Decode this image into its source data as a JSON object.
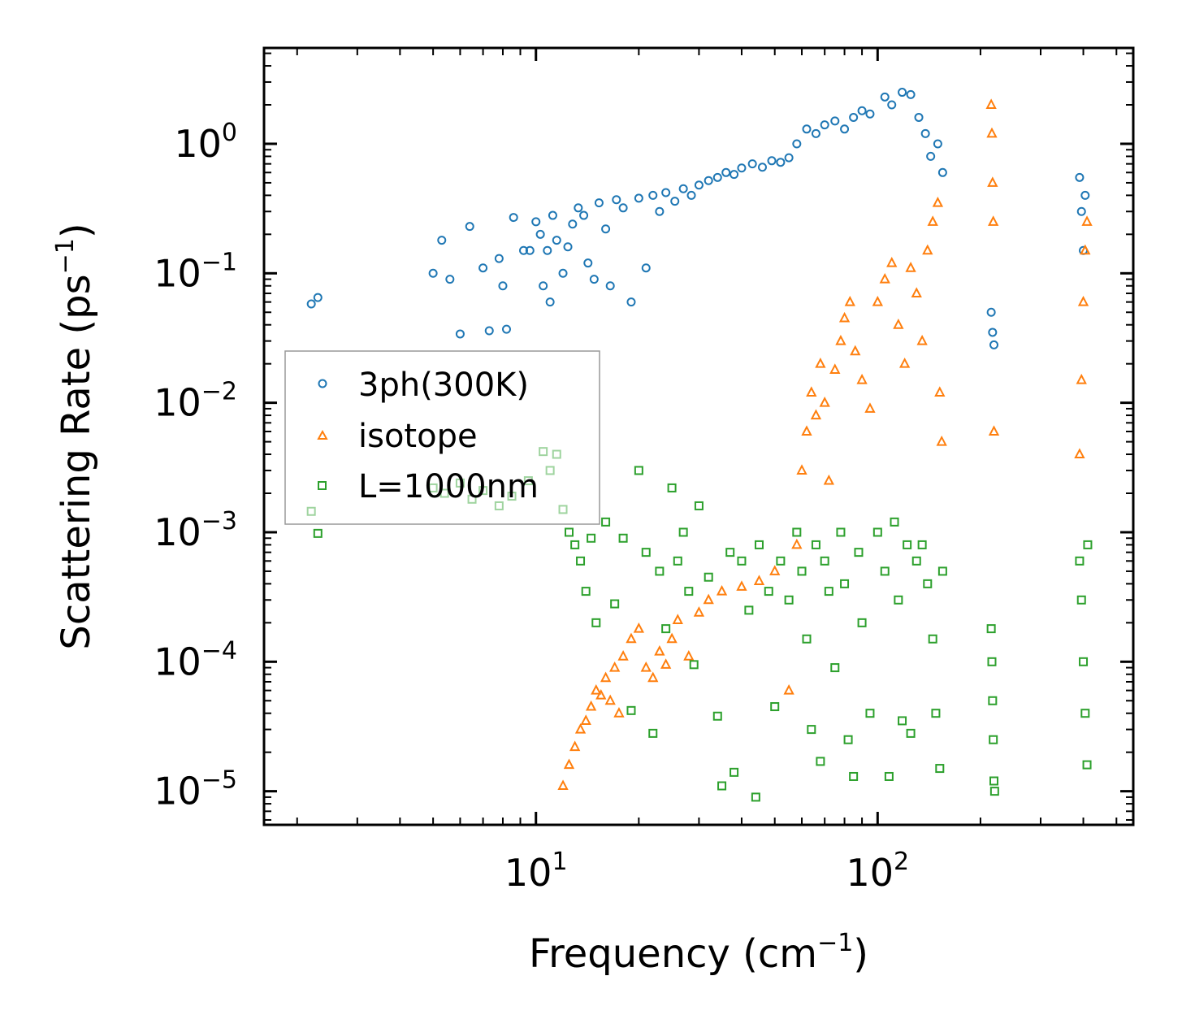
{
  "chart_data": {
    "type": "scatter",
    "xscale": "log",
    "yscale": "log",
    "xlabel": "Frequency (cm",
    "xlabel_sup": "−1",
    "xlabel_close": ")",
    "ylabel": "Scattering Rate (ps",
    "ylabel_sup": "−1",
    "ylabel_close": ")",
    "xlim": [
      1.6,
      560
    ],
    "ylim": [
      5.5e-06,
      5.5
    ],
    "legend_position": "center-left",
    "x_ticks": [
      {
        "value": 10,
        "base": "10",
        "exp": "1"
      },
      {
        "value": 100,
        "base": "10",
        "exp": "2"
      }
    ],
    "y_ticks": [
      {
        "value": 1,
        "base": "10",
        "exp": "0"
      },
      {
        "value": 0.1,
        "base": "10",
        "exp": "−1"
      },
      {
        "value": 0.01,
        "base": "10",
        "exp": "−2"
      },
      {
        "value": 0.001,
        "base": "10",
        "exp": "−3"
      },
      {
        "value": 0.0001,
        "base": "10",
        "exp": "−4"
      },
      {
        "value": 1e-05,
        "base": "10",
        "exp": "−5"
      }
    ],
    "series": [
      {
        "name": "3ph(300K)",
        "marker": "circle",
        "color": "#1f77b4",
        "points": [
          [
            2.2,
            0.058
          ],
          [
            2.3,
            0.065
          ],
          [
            5.0,
            0.1
          ],
          [
            5.3,
            0.18
          ],
          [
            5.6,
            0.09
          ],
          [
            6.0,
            0.034
          ],
          [
            6.4,
            0.23
          ],
          [
            7.0,
            0.11
          ],
          [
            7.3,
            0.036
          ],
          [
            7.8,
            0.13
          ],
          [
            8.0,
            0.08
          ],
          [
            8.2,
            0.037
          ],
          [
            8.6,
            0.27
          ],
          [
            9.2,
            0.15
          ],
          [
            9.6,
            0.15
          ],
          [
            10.0,
            0.25
          ],
          [
            10.3,
            0.2
          ],
          [
            10.5,
            0.08
          ],
          [
            10.8,
            0.15
          ],
          [
            11.0,
            0.06
          ],
          [
            11.2,
            0.28
          ],
          [
            11.5,
            0.18
          ],
          [
            12.0,
            0.1
          ],
          [
            12.4,
            0.16
          ],
          [
            12.8,
            0.24
          ],
          [
            13.3,
            0.32
          ],
          [
            13.8,
            0.28
          ],
          [
            14.2,
            0.12
          ],
          [
            14.8,
            0.09
          ],
          [
            15.3,
            0.35
          ],
          [
            16.0,
            0.22
          ],
          [
            16.5,
            0.08
          ],
          [
            17.2,
            0.37
          ],
          [
            18.0,
            0.32
          ],
          [
            19.0,
            0.06
          ],
          [
            20.0,
            0.38
          ],
          [
            21.0,
            0.11
          ],
          [
            22.0,
            0.4
          ],
          [
            23.0,
            0.3
          ],
          [
            24.0,
            0.42
          ],
          [
            25.5,
            0.36
          ],
          [
            27.0,
            0.45
          ],
          [
            28.5,
            0.4
          ],
          [
            30.0,
            0.48
          ],
          [
            32.0,
            0.52
          ],
          [
            34.0,
            0.55
          ],
          [
            36.0,
            0.6
          ],
          [
            38.0,
            0.58
          ],
          [
            40.0,
            0.65
          ],
          [
            43.0,
            0.7
          ],
          [
            46.0,
            0.66
          ],
          [
            49.0,
            0.74
          ],
          [
            52.0,
            0.72
          ],
          [
            55.0,
            0.78
          ],
          [
            58.0,
            1.0
          ],
          [
            62.0,
            1.3
          ],
          [
            66.0,
            1.2
          ],
          [
            70.0,
            1.4
          ],
          [
            75.0,
            1.5
          ],
          [
            80.0,
            1.3
          ],
          [
            85.0,
            1.6
          ],
          [
            90.0,
            1.8
          ],
          [
            95.0,
            1.7
          ],
          [
            105.0,
            2.3
          ],
          [
            110.0,
            2.0
          ],
          [
            118.0,
            2.5
          ],
          [
            125.0,
            2.4
          ],
          [
            132.0,
            1.6
          ],
          [
            138.0,
            1.2
          ],
          [
            143.0,
            0.8
          ],
          [
            150.0,
            1.0
          ],
          [
            155.0,
            0.6
          ],
          [
            215.0,
            0.05
          ],
          [
            217.0,
            0.035
          ],
          [
            219.0,
            0.028
          ],
          [
            390.0,
            0.55
          ],
          [
            395.0,
            0.3
          ],
          [
            400.0,
            0.15
          ],
          [
            405.0,
            0.4
          ]
        ]
      },
      {
        "name": "isotope",
        "marker": "triangle",
        "color": "#ff7f0e",
        "points": [
          [
            12.0,
            1.1e-05
          ],
          [
            12.5,
            1.6e-05
          ],
          [
            13.0,
            2.2e-05
          ],
          [
            13.5,
            3e-05
          ],
          [
            14.0,
            3.5e-05
          ],
          [
            14.5,
            4.5e-05
          ],
          [
            15.0,
            6e-05
          ],
          [
            15.5,
            5.5e-05
          ],
          [
            16.0,
            7.5e-05
          ],
          [
            16.5,
            5e-05
          ],
          [
            17.0,
            9e-05
          ],
          [
            17.5,
            4e-05
          ],
          [
            18.0,
            0.00011
          ],
          [
            19.0,
            0.00015
          ],
          [
            20.0,
            0.00018
          ],
          [
            21.0,
            9e-05
          ],
          [
            22.0,
            7.5e-05
          ],
          [
            23.0,
            0.00012
          ],
          [
            24.0,
            9.5e-05
          ],
          [
            25.0,
            0.00015
          ],
          [
            26.0,
            0.00021
          ],
          [
            28.0,
            0.00011
          ],
          [
            30.0,
            0.00024
          ],
          [
            32.0,
            0.0003
          ],
          [
            35.0,
            0.00035
          ],
          [
            40.0,
            0.00038
          ],
          [
            45.0,
            0.00042
          ],
          [
            50.0,
            0.0005
          ],
          [
            55.0,
            6e-05
          ],
          [
            58.0,
            0.0008
          ],
          [
            60.0,
            0.003
          ],
          [
            62.0,
            0.006
          ],
          [
            64.0,
            0.012
          ],
          [
            66.0,
            0.008
          ],
          [
            68.0,
            0.02
          ],
          [
            70.0,
            0.01
          ],
          [
            72.0,
            0.0025
          ],
          [
            75.0,
            0.018
          ],
          [
            78.0,
            0.03
          ],
          [
            80.0,
            0.045
          ],
          [
            83.0,
            0.06
          ],
          [
            86.0,
            0.025
          ],
          [
            90.0,
            0.015
          ],
          [
            95.0,
            0.009
          ],
          [
            100.0,
            0.06
          ],
          [
            105.0,
            0.09
          ],
          [
            110.0,
            0.12
          ],
          [
            115.0,
            0.04
          ],
          [
            120.0,
            0.02
          ],
          [
            125.0,
            0.11
          ],
          [
            130.0,
            0.07
          ],
          [
            135.0,
            0.03
          ],
          [
            140.0,
            0.15
          ],
          [
            145.0,
            0.25
          ],
          [
            150.0,
            0.35
          ],
          [
            152.0,
            0.012
          ],
          [
            154.0,
            0.005
          ],
          [
            215.0,
            2.0
          ],
          [
            216.0,
            1.2
          ],
          [
            217.0,
            0.5
          ],
          [
            218.0,
            0.25
          ],
          [
            219.0,
            0.006
          ],
          [
            390.0,
            0.004
          ],
          [
            395.0,
            0.015
          ],
          [
            400.0,
            0.06
          ],
          [
            405.0,
            0.15
          ],
          [
            410.0,
            0.25
          ]
        ]
      },
      {
        "name": "L=1000nm",
        "marker": "square",
        "color": "#2ca02c",
        "points": [
          [
            2.2,
            0.00145
          ],
          [
            2.3,
            0.00098
          ],
          [
            5.0,
            0.0022
          ],
          [
            5.4,
            0.002
          ],
          [
            6.0,
            0.0024
          ],
          [
            6.5,
            0.0018
          ],
          [
            7.0,
            0.0021
          ],
          [
            7.8,
            0.0016
          ],
          [
            8.5,
            0.0019
          ],
          [
            9.5,
            0.0025
          ],
          [
            10.5,
            0.0042
          ],
          [
            11.0,
            0.003
          ],
          [
            11.5,
            0.004
          ],
          [
            12.0,
            0.0015
          ],
          [
            12.5,
            0.001
          ],
          [
            13.0,
            0.0008
          ],
          [
            13.5,
            0.0006
          ],
          [
            14.0,
            0.00035
          ],
          [
            14.5,
            0.0009
          ],
          [
            15.0,
            0.0002
          ],
          [
            16.0,
            0.0012
          ],
          [
            17.0,
            0.00028
          ],
          [
            18.0,
            0.0009
          ],
          [
            19.0,
            4.2e-05
          ],
          [
            20.0,
            0.003
          ],
          [
            21.0,
            0.0007
          ],
          [
            22.0,
            2.8e-05
          ],
          [
            23.0,
            0.0005
          ],
          [
            24.0,
            0.00018
          ],
          [
            25.0,
            0.0022
          ],
          [
            26.0,
            0.0006
          ],
          [
            27.0,
            0.001
          ],
          [
            28.0,
            0.00035
          ],
          [
            29.0,
            9.5e-05
          ],
          [
            30.0,
            0.0016
          ],
          [
            32.0,
            0.00045
          ],
          [
            34.0,
            3.8e-05
          ],
          [
            35.0,
            1.1e-05
          ],
          [
            37.0,
            0.0007
          ],
          [
            38.0,
            1.4e-05
          ],
          [
            40.0,
            0.0006
          ],
          [
            42.0,
            0.00025
          ],
          [
            44.0,
            9e-06
          ],
          [
            45.0,
            0.0008
          ],
          [
            48.0,
            0.00035
          ],
          [
            50.0,
            4.5e-05
          ],
          [
            52.0,
            0.0006
          ],
          [
            55.0,
            0.0003
          ],
          [
            58.0,
            0.001
          ],
          [
            60.0,
            0.0005
          ],
          [
            62.0,
            0.00015
          ],
          [
            64.0,
            3e-05
          ],
          [
            66.0,
            0.0008
          ],
          [
            68.0,
            1.7e-05
          ],
          [
            70.0,
            0.0006
          ],
          [
            72.0,
            0.00035
          ],
          [
            75.0,
            9e-05
          ],
          [
            78.0,
            0.001
          ],
          [
            80.0,
            0.0004
          ],
          [
            82.0,
            2.5e-05
          ],
          [
            85.0,
            1.3e-05
          ],
          [
            88.0,
            0.0007
          ],
          [
            90.0,
            0.0002
          ],
          [
            95.0,
            4e-05
          ],
          [
            100.0,
            0.001
          ],
          [
            105.0,
            0.0005
          ],
          [
            108.0,
            1.3e-05
          ],
          [
            112.0,
            0.0012
          ],
          [
            115.0,
            0.0003
          ],
          [
            118.0,
            3.5e-05
          ],
          [
            122.0,
            0.0008
          ],
          [
            125.0,
            2.8e-05
          ],
          [
            130.0,
            0.0006
          ],
          [
            135.0,
            0.0008
          ],
          [
            140.0,
            0.0004
          ],
          [
            145.0,
            0.00015
          ],
          [
            148.0,
            4e-05
          ],
          [
            152.0,
            1.5e-05
          ],
          [
            155.0,
            0.0005
          ],
          [
            215.0,
            0.00018
          ],
          [
            216.0,
            0.0001
          ],
          [
            217.0,
            5e-05
          ],
          [
            218.0,
            2.5e-05
          ],
          [
            219.0,
            1.2e-05
          ],
          [
            220.0,
            1e-05
          ],
          [
            390.0,
            0.0006
          ],
          [
            395.0,
            0.0003
          ],
          [
            400.0,
            0.0001
          ],
          [
            405.0,
            4e-05
          ],
          [
            410.0,
            1.6e-05
          ],
          [
            412.0,
            0.0008
          ]
        ]
      }
    ]
  }
}
